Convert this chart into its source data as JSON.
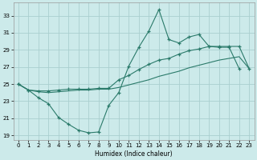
{
  "xlabel": "Humidex (Indice chaleur)",
  "bg_color": "#cceaea",
  "grid_color": "#aacfcf",
  "line_color": "#2a7a6a",
  "xlim": [
    -0.5,
    23.5
  ],
  "ylim": [
    18.5,
    34.5
  ],
  "yticks": [
    19,
    21,
    23,
    25,
    27,
    29,
    31,
    33
  ],
  "xticks": [
    0,
    1,
    2,
    3,
    4,
    5,
    6,
    7,
    8,
    9,
    10,
    11,
    12,
    13,
    14,
    15,
    16,
    17,
    18,
    19,
    20,
    21,
    22,
    23
  ],
  "line1_x": [
    0,
    1,
    2,
    3,
    4,
    5,
    6,
    7,
    8,
    9,
    10,
    11,
    12,
    13,
    14,
    15,
    16,
    17,
    18,
    19,
    20,
    21,
    22
  ],
  "line1_y": [
    25.0,
    24.3,
    23.4,
    22.7,
    21.1,
    20.3,
    19.6,
    19.3,
    19.4,
    22.5,
    24.0,
    27.1,
    29.3,
    31.2,
    33.7,
    30.2,
    29.8,
    30.5,
    30.8,
    29.4,
    29.3,
    29.3,
    26.8
  ],
  "line2_x": [
    0,
    1,
    2,
    3,
    4,
    5,
    6,
    7,
    8,
    9,
    10,
    11,
    12,
    13,
    14,
    15,
    16,
    17,
    18,
    19,
    20,
    21,
    22,
    23
  ],
  "line2_y": [
    25.0,
    24.3,
    24.2,
    24.2,
    24.3,
    24.4,
    24.4,
    24.4,
    24.5,
    24.5,
    25.5,
    26.0,
    26.7,
    27.3,
    27.8,
    28.0,
    28.5,
    28.9,
    29.1,
    29.4,
    29.4,
    29.4,
    29.4,
    26.8
  ],
  "line3_x": [
    0,
    1,
    2,
    3,
    4,
    5,
    6,
    7,
    8,
    9,
    10,
    11,
    12,
    13,
    14,
    15,
    16,
    17,
    18,
    19,
    20,
    21,
    22,
    23
  ],
  "line3_y": [
    25.0,
    24.3,
    24.1,
    24.0,
    24.1,
    24.2,
    24.3,
    24.3,
    24.4,
    24.4,
    24.6,
    24.9,
    25.2,
    25.5,
    25.9,
    26.2,
    26.5,
    26.9,
    27.2,
    27.5,
    27.8,
    28.0,
    28.2,
    26.8
  ]
}
